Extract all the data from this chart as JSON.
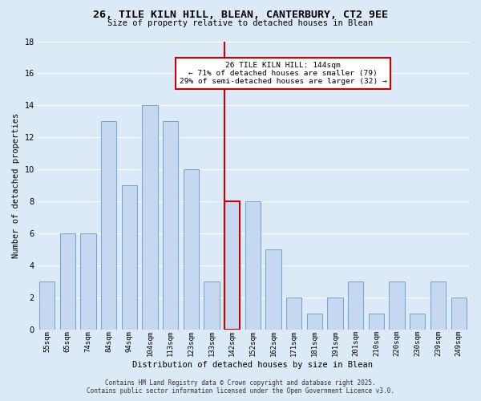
{
  "title": "26, TILE KILN HILL, BLEAN, CANTERBURY, CT2 9EE",
  "subtitle": "Size of property relative to detached houses in Blean",
  "xlabel": "Distribution of detached houses by size in Blean",
  "ylabel": "Number of detached properties",
  "categories": [
    "55sqm",
    "65sqm",
    "74sqm",
    "84sqm",
    "94sqm",
    "104sqm",
    "113sqm",
    "123sqm",
    "133sqm",
    "142sqm",
    "152sqm",
    "162sqm",
    "171sqm",
    "181sqm",
    "191sqm",
    "201sqm",
    "210sqm",
    "220sqm",
    "230sqm",
    "239sqm",
    "249sqm"
  ],
  "values": [
    3,
    6,
    6,
    13,
    9,
    14,
    13,
    10,
    3,
    8,
    8,
    5,
    2,
    1,
    2,
    3,
    1,
    3,
    1,
    3,
    2
  ],
  "bar_color": "#c5d8f0",
  "bar_edge_color": "#5b9bd5",
  "highlight_index": 9,
  "highlight_line_color": "#cc0000",
  "annotation_title": "26 TILE KILN HILL: 144sqm",
  "annotation_line1": "← 71% of detached houses are smaller (79)",
  "annotation_line2": "29% of semi-detached houses are larger (32) →",
  "annotation_box_color": "#ffffff",
  "annotation_box_edge_color": "#cc0000",
  "ylim": [
    0,
    18
  ],
  "yticks": [
    0,
    2,
    4,
    6,
    8,
    10,
    12,
    14,
    16,
    18
  ],
  "background_color": "#dce9f7",
  "grid_color": "#ffffff",
  "footer_line1": "Contains HM Land Registry data © Crown copyright and database right 2025.",
  "footer_line2": "Contains public sector information licensed under the Open Government Licence v3.0."
}
